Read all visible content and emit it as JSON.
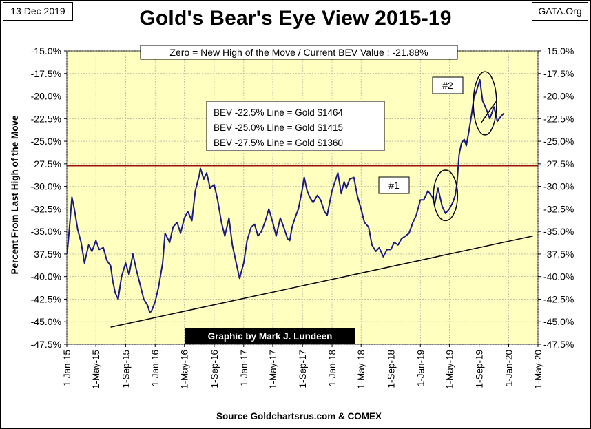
{
  "header": {
    "date": "13 Dec 2019",
    "site": "GATA.Org",
    "title": "Gold's Bear's Eye View 2015-19"
  },
  "colors": {
    "plot_bg": "#FFFFC0",
    "series": "#1A1A80",
    "threshold_line": "#A01010",
    "trend_line": "#000000",
    "grid": "#9A9A9A"
  },
  "chart_data": {
    "type": "line",
    "title": "Gold's Bear's Eye View 2015-19",
    "xlabel": "",
    "ylabel": "Percent  From Last High of the Move",
    "ylim": [
      -47.5,
      -15.0
    ],
    "yticks": [
      -15.0,
      -17.5,
      -20.0,
      -22.5,
      -25.0,
      -27.5,
      -30.0,
      -32.5,
      -35.0,
      -37.5,
      -40.0,
      -42.5,
      -45.0,
      -47.5
    ],
    "ytick_labels": [
      "-15.0%",
      "-17.5%",
      "-20.0%",
      "-22.5%",
      "-25.0%",
      "-27.5%",
      "-30.0%",
      "-32.5%",
      "-35.0%",
      "-37.5%",
      "-40.0%",
      "-42.5%",
      "-45.0%",
      "-47.5%"
    ],
    "xlim": [
      "2015-01-01",
      "2020-05-01"
    ],
    "xticks": [
      "2015-01-01",
      "2015-05-01",
      "2015-09-01",
      "2016-01-01",
      "2016-05-01",
      "2016-09-01",
      "2017-01-01",
      "2017-05-01",
      "2017-09-01",
      "2018-01-01",
      "2018-05-01",
      "2018-09-01",
      "2019-01-01",
      "2019-05-01",
      "2019-09-01",
      "2020-01-01",
      "2020-05-01"
    ],
    "xtick_labels": [
      "1-Jan-15",
      "1-May-15",
      "1-Sep-15",
      "1-Jan-16",
      "1-May-16",
      "1-Sep-16",
      "1-Jan-17",
      "1-May-17",
      "1-Sep-17",
      "1-Jan-18",
      "1-May-18",
      "1-Sep-18",
      "1-Jan-19",
      "1-May-19",
      "1-Sep-19",
      "1-Jan-20",
      "1-May-20"
    ],
    "grid": true,
    "series": [
      {
        "name": "",
        "x": [
          "2015-01-02",
          "2015-01-12",
          "2015-01-22",
          "2015-02-01",
          "2015-02-15",
          "2015-03-01",
          "2015-03-15",
          "2015-04-01",
          "2015-04-15",
          "2015-05-01",
          "2015-05-15",
          "2015-06-01",
          "2015-06-15",
          "2015-07-01",
          "2015-07-10",
          "2015-07-20",
          "2015-08-01",
          "2015-08-15",
          "2015-09-01",
          "2015-09-15",
          "2015-10-01",
          "2015-10-15",
          "2015-11-01",
          "2015-11-15",
          "2015-12-01",
          "2015-12-10",
          "2015-12-17",
          "2016-01-01",
          "2016-01-15",
          "2016-02-01",
          "2016-02-11",
          "2016-03-01",
          "2016-03-15",
          "2016-04-01",
          "2016-04-15",
          "2016-05-01",
          "2016-05-15",
          "2016-06-01",
          "2016-06-15",
          "2016-07-01",
          "2016-07-06",
          "2016-07-20",
          "2016-08-01",
          "2016-08-15",
          "2016-09-01",
          "2016-09-15",
          "2016-10-01",
          "2016-10-15",
          "2016-11-01",
          "2016-11-15",
          "2016-12-01",
          "2016-12-15",
          "2017-01-01",
          "2017-01-15",
          "2017-02-01",
          "2017-02-15",
          "2017-03-01",
          "2017-03-15",
          "2017-04-01",
          "2017-04-15",
          "2017-05-01",
          "2017-05-15",
          "2017-06-01",
          "2017-06-15",
          "2017-07-01",
          "2017-07-10",
          "2017-07-20",
          "2017-08-01",
          "2017-08-15",
          "2017-09-01",
          "2017-09-08",
          "2017-09-20",
          "2017-10-01",
          "2017-10-15",
          "2017-11-01",
          "2017-11-15",
          "2017-12-01",
          "2017-12-12",
          "2018-01-01",
          "2018-01-25",
          "2018-02-08",
          "2018-02-20",
          "2018-03-01",
          "2018-03-15",
          "2018-04-01",
          "2018-04-15",
          "2018-05-01",
          "2018-05-15",
          "2018-06-01",
          "2018-06-15",
          "2018-07-01",
          "2018-07-15",
          "2018-08-01",
          "2018-08-16",
          "2018-09-01",
          "2018-09-15",
          "2018-10-01",
          "2018-10-15",
          "2018-11-01",
          "2018-11-15",
          "2018-12-01",
          "2018-12-15",
          "2019-01-01",
          "2019-01-15",
          "2019-02-01",
          "2019-02-20",
          "2019-03-01",
          "2019-03-15",
          "2019-04-01",
          "2019-04-15",
          "2019-05-01",
          "2019-05-15",
          "2019-05-25",
          "2019-06-01",
          "2019-06-10",
          "2019-06-20",
          "2019-07-01",
          "2019-07-10",
          "2019-07-20",
          "2019-08-01",
          "2019-08-10",
          "2019-08-20",
          "2019-09-04",
          "2019-09-15",
          "2019-10-01",
          "2019-10-15",
          "2019-11-01",
          "2019-11-15",
          "2019-12-01",
          "2019-12-13"
        ],
        "values": [
          -37.5,
          -34.5,
          -31.2,
          -32.5,
          -34.8,
          -36.2,
          -38.5,
          -36.5,
          -37.2,
          -36.0,
          -37.0,
          -36.8,
          -38.2,
          -38.8,
          -40.5,
          -41.8,
          -42.5,
          -40.0,
          -38.5,
          -39.8,
          -37.5,
          -39.2,
          -41.0,
          -42.5,
          -43.2,
          -44.0,
          -43.8,
          -42.8,
          -41.2,
          -38.5,
          -35.2,
          -36.2,
          -34.5,
          -34.0,
          -35.2,
          -33.5,
          -32.8,
          -33.8,
          -30.5,
          -28.8,
          -28.0,
          -29.2,
          -28.5,
          -30.2,
          -29.8,
          -31.5,
          -34.0,
          -35.5,
          -33.5,
          -36.5,
          -38.5,
          -40.2,
          -38.5,
          -36.0,
          -34.5,
          -34.2,
          -35.5,
          -35.0,
          -33.8,
          -32.5,
          -34.0,
          -35.5,
          -33.5,
          -34.5,
          -35.8,
          -36.0,
          -34.5,
          -33.5,
          -32.5,
          -30.2,
          -29.0,
          -30.5,
          -31.2,
          -31.8,
          -31.0,
          -31.5,
          -32.8,
          -33.2,
          -30.5,
          -28.5,
          -30.8,
          -29.5,
          -30.2,
          -29.2,
          -29.0,
          -31.0,
          -32.5,
          -34.0,
          -34.5,
          -36.5,
          -37.2,
          -36.8,
          -37.8,
          -37.0,
          -37.0,
          -36.2,
          -36.5,
          -35.8,
          -35.5,
          -35.2,
          -34.0,
          -33.2,
          -31.5,
          -31.5,
          -30.5,
          -31.2,
          -32.0,
          -30.2,
          -32.2,
          -33.0,
          -32.5,
          -31.8,
          -31.0,
          -29.8,
          -26.5,
          -25.2,
          -24.8,
          -25.5,
          -24.0,
          -22.0,
          -20.2,
          -19.5,
          -18.2,
          -20.5,
          -21.5,
          -22.5,
          -21.2,
          -22.8,
          -22.2,
          -21.9
        ]
      }
    ],
    "reference_lines": [
      {
        "type": "horizontal",
        "y": -27.7
      },
      {
        "type": "trend",
        "x": [
          "2015-07-01",
          "2020-04-10"
        ],
        "y": [
          -45.6,
          -35.5
        ]
      }
    ],
    "ellipses": [
      {
        "label": "#1",
        "center_x": "2019-04-15",
        "center_y": -31.0,
        "rx_days": 50,
        "ry": 2.8
      },
      {
        "label": "#2",
        "center_x": "2019-09-25",
        "center_y": -20.8,
        "rx_days": 48,
        "ry": 3.5
      }
    ],
    "annotations": {
      "zero_note": "Zero = New High of the Move / Current  BEV Value : -21.88%",
      "bev_lines": [
        "BEV -22.5% Line = Gold $1464",
        "BEV -25.0% Line = Gold $1415",
        "BEV -27.5% Line = Gold $1360"
      ],
      "marker_1": "#1",
      "marker_2": "#2",
      "credit": "Graphic by Mark J. Lundeen",
      "source": "Source Goldchartsrus.com & COMEX"
    }
  }
}
